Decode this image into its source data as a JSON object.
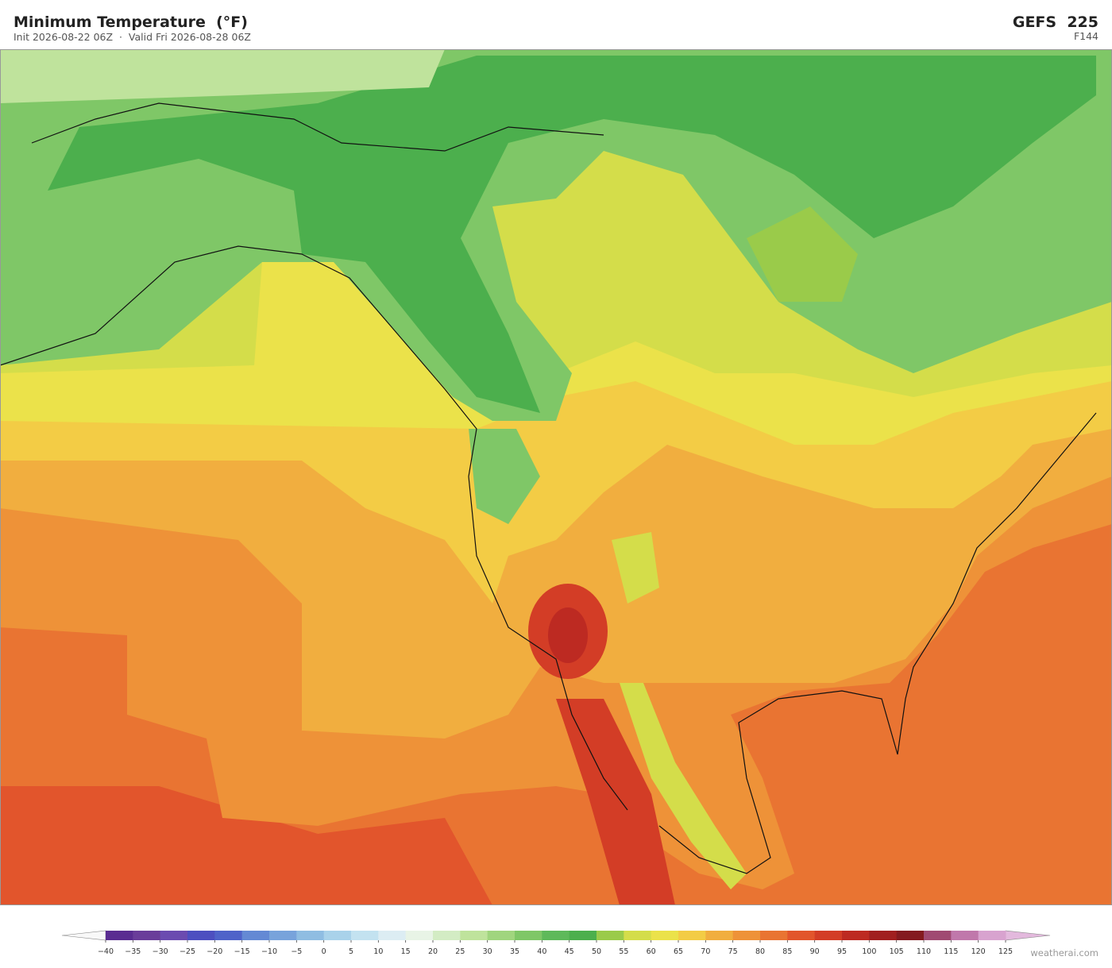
{
  "header": {
    "title": "Minimum Temperature  (°F)",
    "subtitle": "Init 2026-08-22 06Z  ·  Valid Fri 2026-08-28 06Z",
    "model": "GEFS  225",
    "forecast_hour": "F144"
  },
  "colorbar": {
    "ticks": [
      {
        "value": -40,
        "label": "−40"
      },
      {
        "value": -35,
        "label": "−35"
      },
      {
        "value": -30,
        "label": "−30"
      },
      {
        "value": -25,
        "label": "−25"
      },
      {
        "value": -20,
        "label": "−20"
      },
      {
        "value": -15,
        "label": "−15"
      },
      {
        "value": -10,
        "label": "−10"
      },
      {
        "value": -5,
        "label": "−5"
      },
      0,
      5,
      10,
      15,
      20,
      25,
      30,
      35,
      40,
      45,
      50,
      55,
      60,
      65,
      70,
      75,
      80,
      85,
      90,
      95,
      100,
      105,
      110,
      115,
      120,
      125
    ],
    "colors": [
      "#5a2d91",
      "#6a3d9a",
      "#6b4bb0",
      "#4d4fc0",
      "#4f63c9",
      "#6489d4",
      "#78a3db",
      "#8fbde2",
      "#a9d2ea",
      "#c3e2f0",
      "#dcedf3",
      "#e8f4e6",
      "#d3ecc4",
      "#bfe39c",
      "#a0d57e",
      "#7fc767",
      "#5eb95a",
      "#4caf4d",
      "#9acb4a",
      "#d4dd4a",
      "#ebe24a",
      "#f3cc45",
      "#f1ae3f",
      "#ee9238",
      "#e97432",
      "#e2552c",
      "#d33d26",
      "#bd2a22",
      "#a11f1f",
      "#841a1f",
      "#a04a72",
      "#c078ab",
      "#d8a3cf"
    ],
    "under_color": "#f8f8f8",
    "over_color": "#e3b9dd"
  },
  "watermark": "weatherai.com"
}
